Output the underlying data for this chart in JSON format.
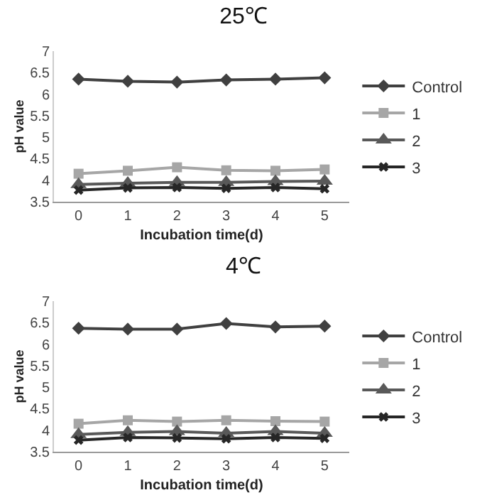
{
  "chart_data": [
    {
      "type": "line",
      "title": "25℃",
      "xlabel": "Incubation time(d)",
      "ylabel": "pH value",
      "categories": [
        "0",
        "1",
        "2",
        "3",
        "4",
        "5"
      ],
      "ylim": [
        3.5,
        7
      ],
      "yticks": [
        3.5,
        4,
        4.5,
        5,
        5.5,
        6,
        6.5,
        7
      ],
      "grid": false,
      "legend": "right",
      "series": [
        {
          "name": "Control",
          "color": "#404040",
          "marker": "diamond",
          "values": [
            6.35,
            6.3,
            6.28,
            6.33,
            6.35,
            6.38
          ]
        },
        {
          "name": "1",
          "color": "#a6a6a6",
          "marker": "square",
          "values": [
            4.15,
            4.22,
            4.3,
            4.23,
            4.22,
            4.25
          ]
        },
        {
          "name": "2",
          "color": "#595959",
          "marker": "triangle",
          "values": [
            3.9,
            3.93,
            3.95,
            3.95,
            3.97,
            3.98
          ]
        },
        {
          "name": "3",
          "color": "#262626",
          "marker": "cross",
          "values": [
            3.77,
            3.82,
            3.83,
            3.81,
            3.83,
            3.8
          ]
        }
      ]
    },
    {
      "type": "line",
      "title": "4℃",
      "xlabel": "Incubation time(d)",
      "ylabel": "pH value",
      "categories": [
        "0",
        "1",
        "2",
        "3",
        "4",
        "5"
      ],
      "ylim": [
        3.5,
        7
      ],
      "yticks": [
        3.5,
        4,
        4.5,
        5,
        5.5,
        6,
        6.5,
        7
      ],
      "grid": false,
      "legend": "right",
      "series": [
        {
          "name": "Control",
          "color": "#404040",
          "marker": "diamond",
          "values": [
            6.37,
            6.35,
            6.35,
            6.48,
            6.4,
            6.42
          ]
        },
        {
          "name": "1",
          "color": "#a6a6a6",
          "marker": "square",
          "values": [
            4.15,
            4.23,
            4.2,
            4.23,
            4.21,
            4.2
          ]
        },
        {
          "name": "2",
          "color": "#595959",
          "marker": "triangle",
          "values": [
            3.9,
            3.95,
            3.97,
            3.93,
            3.97,
            3.93
          ]
        },
        {
          "name": "3",
          "color": "#262626",
          "marker": "cross",
          "values": [
            3.77,
            3.83,
            3.82,
            3.8,
            3.83,
            3.81
          ]
        }
      ]
    }
  ]
}
